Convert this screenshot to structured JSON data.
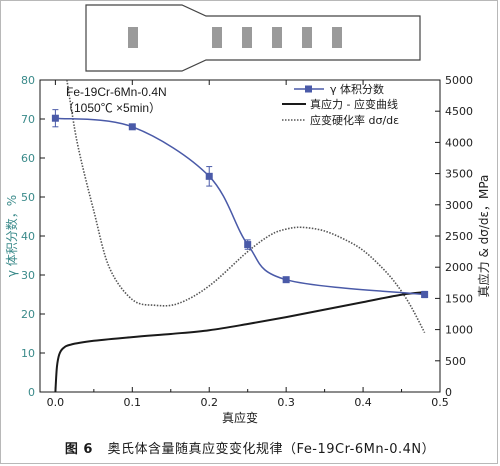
{
  "colors": {
    "gamma": "#4a5aa8",
    "stress": "#1a1a1a",
    "hardening": "#555555",
    "left_axis": "#3a8a8a",
    "right_axis": "#222222",
    "specimen_fill": "#9a9a9a"
  },
  "caption": {
    "figure_label": "图 6",
    "text": "奥氏体含量随真应变变化规律（Fe-19Cr-6Mn-0.4N）"
  },
  "chart_data": {
    "type": "line",
    "annotation_lines": [
      "Fe-19Cr-6Mn-0.4N",
      "（1050℃ ×5min）"
    ],
    "xlabel": "真应变",
    "ylabel_left": "γ 体积分数，%",
    "ylabel_right": "真应力 & dσ/dε，MPa",
    "xlim": [
      -0.02,
      0.5
    ],
    "ylim_left": [
      0,
      80
    ],
    "ylim_right": [
      0,
      5000
    ],
    "x_ticks": [
      "0.0",
      "0.1",
      "0.2",
      "0.3",
      "0.4",
      "0.5"
    ],
    "y_left_ticks": [
      "0",
      "10",
      "20",
      "30",
      "40",
      "50",
      "60",
      "70",
      "80"
    ],
    "y_right_ticks": [
      "0",
      "500",
      "1000",
      "1500",
      "2000",
      "2500",
      "3000",
      "3500",
      "4000",
      "4500",
      "5000"
    ],
    "legend_position": "top-right",
    "series": [
      {
        "name": "γ 体积分数",
        "axis": "left",
        "x": [
          0.0,
          0.1,
          0.2,
          0.25,
          0.3,
          0.48
        ],
        "values": [
          70.2,
          68.0,
          55.3,
          37.8,
          28.8,
          25.0
        ],
        "errors": [
          2.2,
          0.5,
          2.5,
          1.2,
          0.5,
          0.8
        ]
      },
      {
        "name": "真应力 - 应变曲线",
        "axis": "right",
        "x": [
          0.0,
          0.002,
          0.005,
          0.01,
          0.02,
          0.05,
          0.1,
          0.15,
          0.2,
          0.25,
          0.3,
          0.35,
          0.4,
          0.45,
          0.48
        ],
        "values": [
          0,
          400,
          600,
          700,
          760,
          820,
          880,
          930,
          990,
          1090,
          1200,
          1320,
          1440,
          1560,
          1600
        ]
      },
      {
        "name": "应变硬化率 dσ/dε",
        "axis": "right",
        "x": [
          0.015,
          0.02,
          0.03,
          0.05,
          0.07,
          0.1,
          0.13,
          0.16,
          0.2,
          0.25,
          0.28,
          0.3,
          0.32,
          0.35,
          0.38,
          0.4,
          0.42,
          0.44,
          0.46,
          0.48
        ],
        "values": [
          5000,
          4600,
          3900,
          2900,
          2000,
          1480,
          1390,
          1420,
          1700,
          2250,
          2520,
          2610,
          2640,
          2580,
          2420,
          2270,
          2050,
          1780,
          1420,
          950
        ]
      }
    ]
  }
}
